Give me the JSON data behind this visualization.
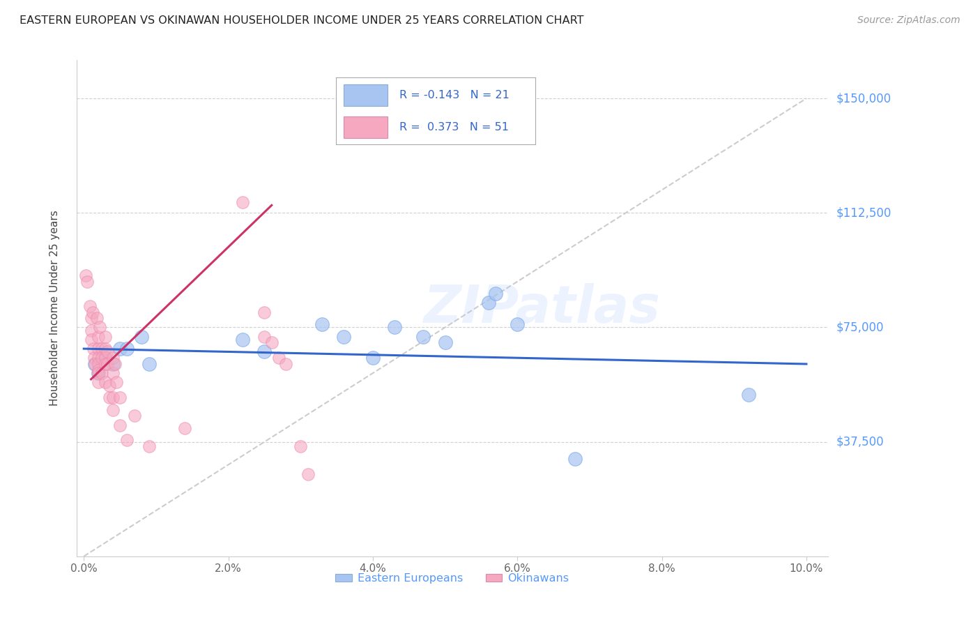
{
  "title": "EASTERN EUROPEAN VS OKINAWAN HOUSEHOLDER INCOME UNDER 25 YEARS CORRELATION CHART",
  "source": "Source: ZipAtlas.com",
  "ylabel": "Householder Income Under 25 years",
  "xlabel_ticks": [
    "0.0%",
    "2.0%",
    "4.0%",
    "6.0%",
    "8.0%",
    "10.0%"
  ],
  "xlabel_vals": [
    0.0,
    0.02,
    0.04,
    0.06,
    0.08,
    0.1
  ],
  "ytick_labels": [
    "$37,500",
    "$75,000",
    "$112,500",
    "$150,000"
  ],
  "ytick_vals": [
    37500,
    75000,
    112500,
    150000
  ],
  "ylim": [
    0,
    162500
  ],
  "xlim": [
    -0.001,
    0.103
  ],
  "watermark": "ZIPatlas",
  "legend_blue_r": "-0.143",
  "legend_blue_n": "21",
  "legend_pink_r": "0.373",
  "legend_pink_n": "51",
  "legend_blue_label": "Eastern Europeans",
  "legend_pink_label": "Okinawans",
  "blue_color": "#a8c4f0",
  "pink_color": "#f5a8c0",
  "blue_line_color": "#3366cc",
  "pink_line_color": "#cc3366",
  "diag_line_color": "#cccccc",
  "blue_scatter": [
    [
      0.0015,
      63000
    ],
    [
      0.002,
      60000
    ],
    [
      0.003,
      65000
    ],
    [
      0.004,
      63000
    ],
    [
      0.005,
      68000
    ],
    [
      0.006,
      68000
    ],
    [
      0.008,
      72000
    ],
    [
      0.009,
      63000
    ],
    [
      0.022,
      71000
    ],
    [
      0.025,
      67000
    ],
    [
      0.033,
      76000
    ],
    [
      0.036,
      72000
    ],
    [
      0.04,
      65000
    ],
    [
      0.043,
      75000
    ],
    [
      0.047,
      72000
    ],
    [
      0.05,
      70000
    ],
    [
      0.056,
      83000
    ],
    [
      0.057,
      86000
    ],
    [
      0.06,
      76000
    ],
    [
      0.068,
      32000
    ],
    [
      0.092,
      53000
    ]
  ],
  "pink_scatter": [
    [
      0.0003,
      92000
    ],
    [
      0.0005,
      90000
    ],
    [
      0.0008,
      82000
    ],
    [
      0.001,
      78000
    ],
    [
      0.001,
      74000
    ],
    [
      0.001,
      71000
    ],
    [
      0.0012,
      80000
    ],
    [
      0.0013,
      68000
    ],
    [
      0.0014,
      65000
    ],
    [
      0.0015,
      63000
    ],
    [
      0.0018,
      78000
    ],
    [
      0.002,
      72000
    ],
    [
      0.002,
      68000
    ],
    [
      0.002,
      65000
    ],
    [
      0.002,
      63000
    ],
    [
      0.002,
      61000
    ],
    [
      0.002,
      60000
    ],
    [
      0.002,
      57000
    ],
    [
      0.0022,
      75000
    ],
    [
      0.0025,
      68000
    ],
    [
      0.0025,
      65000
    ],
    [
      0.0025,
      60000
    ],
    [
      0.003,
      72000
    ],
    [
      0.003,
      68000
    ],
    [
      0.003,
      65000
    ],
    [
      0.003,
      63000
    ],
    [
      0.003,
      57000
    ],
    [
      0.0033,
      67000
    ],
    [
      0.0033,
      63000
    ],
    [
      0.0035,
      56000
    ],
    [
      0.0035,
      52000
    ],
    [
      0.004,
      65000
    ],
    [
      0.004,
      60000
    ],
    [
      0.004,
      52000
    ],
    [
      0.004,
      48000
    ],
    [
      0.0043,
      63000
    ],
    [
      0.0045,
      57000
    ],
    [
      0.005,
      52000
    ],
    [
      0.005,
      43000
    ],
    [
      0.006,
      38000
    ],
    [
      0.007,
      46000
    ],
    [
      0.009,
      36000
    ],
    [
      0.014,
      42000
    ],
    [
      0.022,
      116000
    ],
    [
      0.025,
      80000
    ],
    [
      0.025,
      72000
    ],
    [
      0.026,
      70000
    ],
    [
      0.027,
      65000
    ],
    [
      0.028,
      63000
    ],
    [
      0.03,
      36000
    ],
    [
      0.031,
      27000
    ]
  ]
}
